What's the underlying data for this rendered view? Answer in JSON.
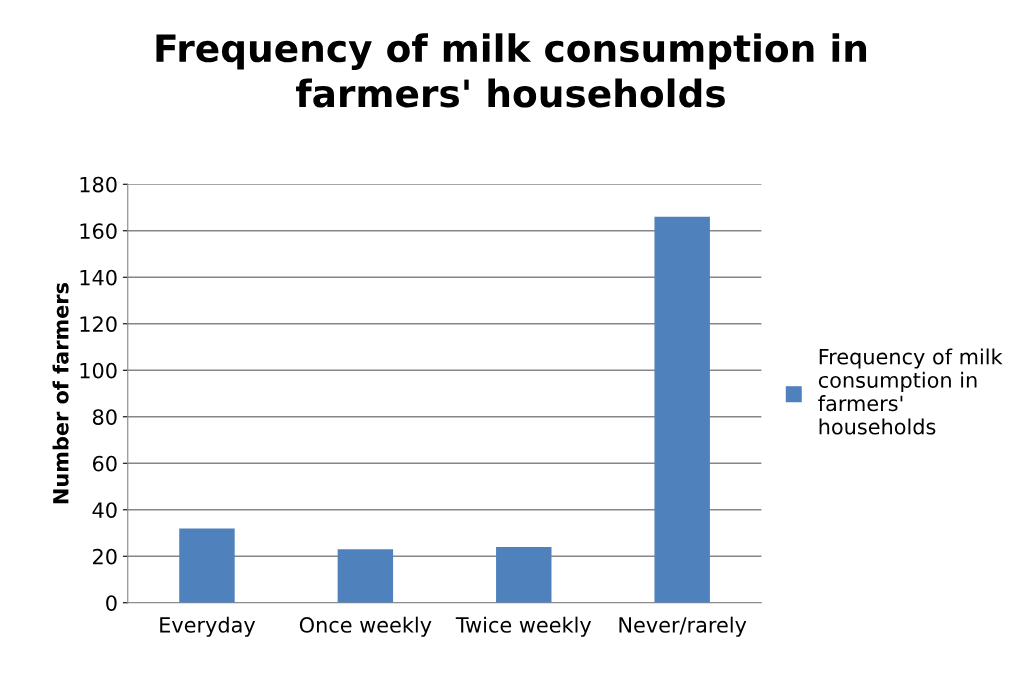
{
  "chart_data": {
    "type": "bar",
    "title": "Frequency of milk consumption in farmers' households",
    "ylabel": "Number of farmers",
    "categories": [
      "Everyday",
      "Once weekly",
      "Twice weekly",
      "Never/rarely"
    ],
    "series": [
      {
        "name": "Frequency of milk consumption in farmers' households",
        "color": "#4f81bd",
        "values": [
          32,
          23,
          24,
          166
        ]
      }
    ],
    "ylim": [
      0,
      180
    ],
    "yticks": [
      0,
      20,
      40,
      60,
      80,
      100,
      120,
      140,
      160,
      180
    ],
    "grid": "y",
    "legend": "right"
  }
}
